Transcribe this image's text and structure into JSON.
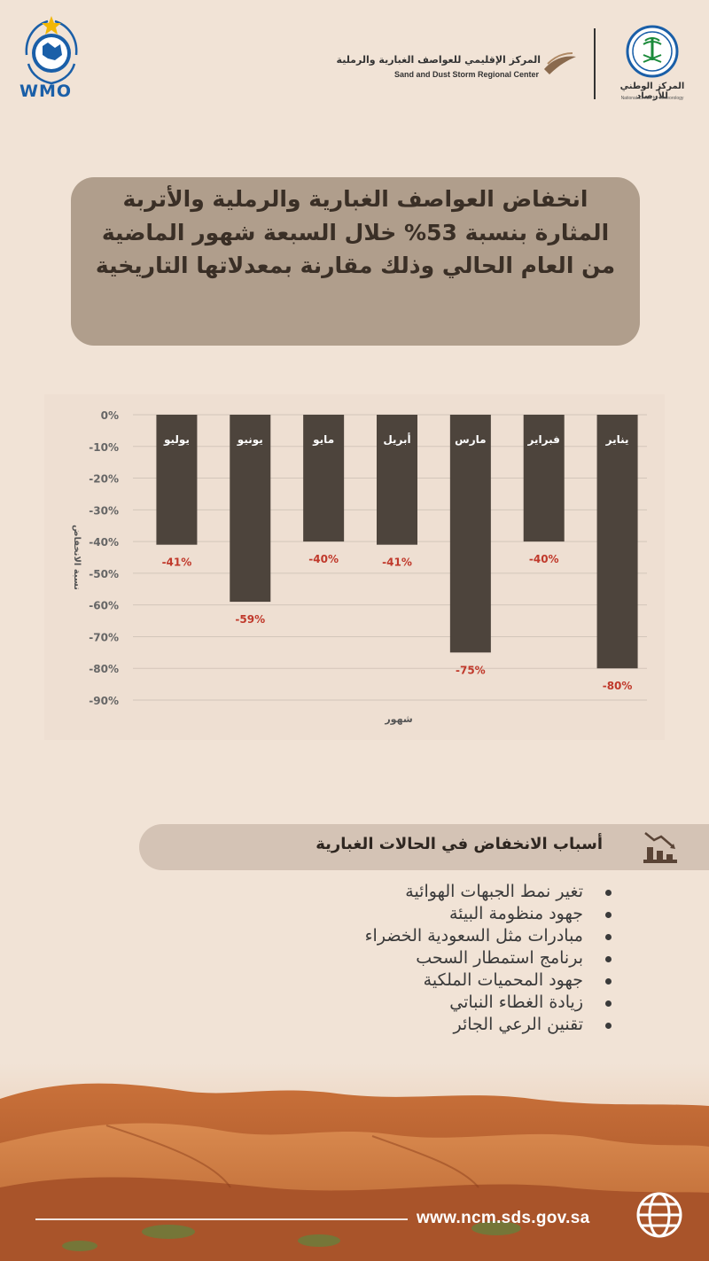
{
  "logos": {
    "wmo_text": "WMO",
    "sds_ar": "المركز الإقليمي للعواصف الغبارية والرملية",
    "sds_en": "Sand and Dust Storm Regional Center",
    "ncm_ar": "المركز الوطني للأرصاد",
    "ncm_en": "National Center for Meteorology"
  },
  "title": "انخفاض العواصف الغبارية والرملية والأتربة المثارة بنسبة 53% خلال السبعة شهور الماضية من العام الحالي وذلك مقارنة بمعدلاتها التاريخية",
  "chart_data": {
    "type": "bar",
    "categories": [
      "يناير",
      "فبراير",
      "مارس",
      "أبريل",
      "مايو",
      "يونيو",
      "يوليو"
    ],
    "values": [
      -80,
      -40,
      -75,
      -41,
      -40,
      -59,
      -41
    ],
    "value_labels": [
      "-80%",
      "-40%",
      "-75%",
      "-41%",
      "-40%",
      "-59%",
      "-41%"
    ],
    "x_order": "right-to-left",
    "xlabel": "شهور",
    "ylabel": "نسبة الانخفاض",
    "ylim": [
      -90,
      0
    ],
    "yticks": [
      "0%",
      "-10%",
      "-20%",
      "-30%",
      "-40%",
      "-50%",
      "-60%",
      "-70%",
      "-80%",
      "-90%"
    ],
    "grid": true,
    "bar_color": "#4d443c",
    "label_color": "#c0392b"
  },
  "reasons": {
    "title": "أسباب الانخفاض في الحالات الغبارية",
    "icon": "declining-chart-icon",
    "items": [
      "تغير نمط الجبهات الهوائية",
      "جهود منظومة البيئة",
      "مبادرات مثل السعودية الخضراء",
      "برنامج استمطار السحب",
      "جهود المحميات الملكية",
      "زيادة الغطاء النباتي",
      "تقنين الرعي الجائر"
    ]
  },
  "footer": {
    "url": "www.ncm.sds.gov.sa",
    "icon": "globe-icon"
  },
  "colors": {
    "background": "#f1e3d6",
    "title_card": "#b09e8c",
    "reasons_bar": "#d4c3b5"
  }
}
